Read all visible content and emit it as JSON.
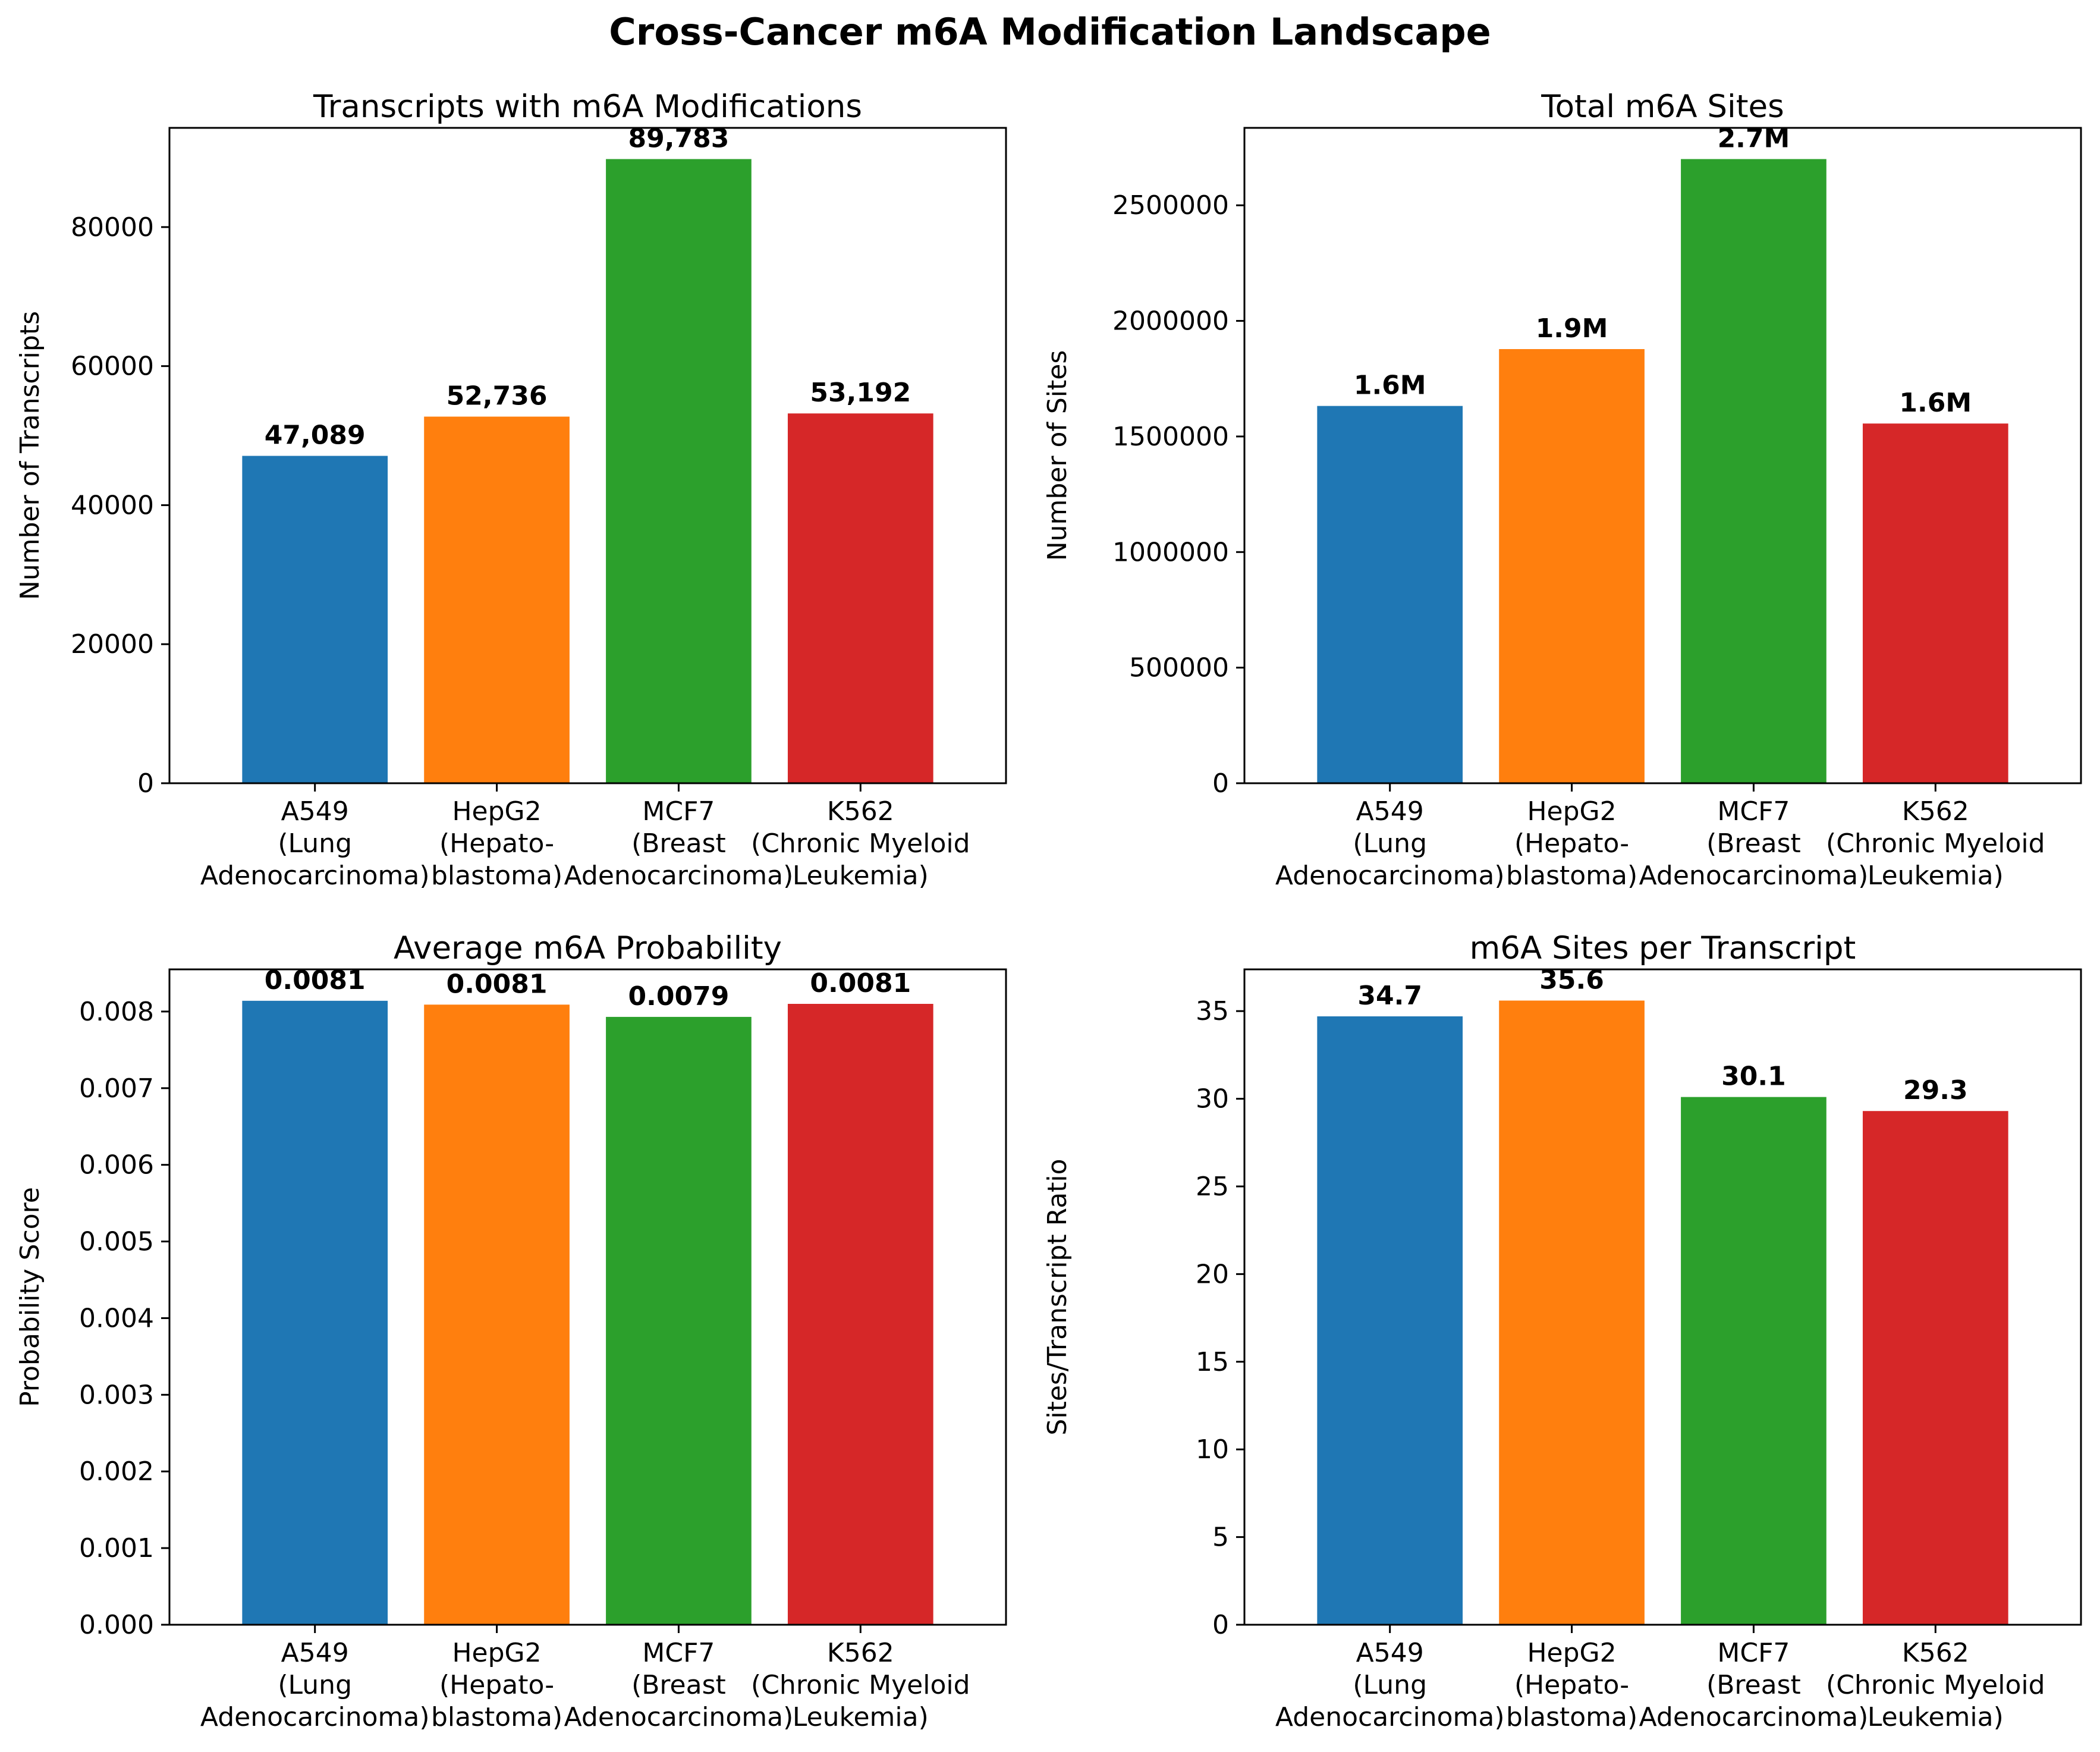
{
  "suptitle": "Cross-Cancer m6A Modification Landscape",
  "colors": [
    "#1f77b4",
    "#ff7f0e",
    "#2ca02c",
    "#d62728"
  ],
  "categories": [
    [
      "A549",
      "(Lung",
      "Adenocarcinoma)"
    ],
    [
      "HepG2",
      "(Hepato-",
      "blastoma)"
    ],
    [
      "MCF7",
      "(Breast",
      "Adenocarcinoma)"
    ],
    [
      "K562",
      "(Chronic Myeloid",
      "Leukemia)"
    ]
  ],
  "chart_data": [
    {
      "type": "bar",
      "title": "Transcripts with m6A Modifications",
      "ylabel": "Number of Transcripts",
      "values": [
        47089,
        52736,
        89783,
        53192
      ],
      "value_labels": [
        "47,089",
        "52,736",
        "89,783",
        "53,192"
      ],
      "ylim": [
        0,
        94272
      ],
      "yticks": [
        0,
        20000,
        40000,
        60000,
        80000
      ],
      "ytick_labels": [
        "0",
        "20000",
        "40000",
        "60000",
        "80000"
      ]
    },
    {
      "type": "bar",
      "title": "Total m6A Sites",
      "ylabel": "Number of Sites",
      "values": [
        1632000,
        1878000,
        2700000,
        1556000
      ],
      "value_labels": [
        "1.6M",
        "1.9M",
        "2.7M",
        "1.6M"
      ],
      "ylim": [
        0,
        2835000
      ],
      "yticks": [
        0,
        500000,
        1000000,
        1500000,
        2000000,
        2500000
      ],
      "ytick_labels": [
        "0",
        "500000",
        "1000000",
        "1500000",
        "2000000",
        "2500000"
      ]
    },
    {
      "type": "bar",
      "title": "Average m6A Probability",
      "ylabel": "Probability Score",
      "values": [
        0.00814,
        0.00809,
        0.00793,
        0.0081
      ],
      "value_labels": [
        "0.0081",
        "0.0081",
        "0.0079",
        "0.0081"
      ],
      "ylim": [
        0,
        0.00855
      ],
      "yticks": [
        0,
        0.001,
        0.002,
        0.003,
        0.004,
        0.005,
        0.006,
        0.007,
        0.008
      ],
      "ytick_labels": [
        "0.000",
        "0.001",
        "0.002",
        "0.003",
        "0.004",
        "0.005",
        "0.006",
        "0.007",
        "0.008"
      ]
    },
    {
      "type": "bar",
      "title": "m6A Sites per Transcript",
      "ylabel": "Sites/Transcript Ratio",
      "values": [
        34.7,
        35.6,
        30.1,
        29.3
      ],
      "value_labels": [
        "34.7",
        "35.6",
        "30.1",
        "29.3"
      ],
      "ylim": [
        0,
        37.38
      ],
      "yticks": [
        0,
        5,
        10,
        15,
        20,
        25,
        30,
        35
      ],
      "ytick_labels": [
        "0",
        "5",
        "10",
        "15",
        "20",
        "25",
        "30",
        "35"
      ]
    }
  ]
}
